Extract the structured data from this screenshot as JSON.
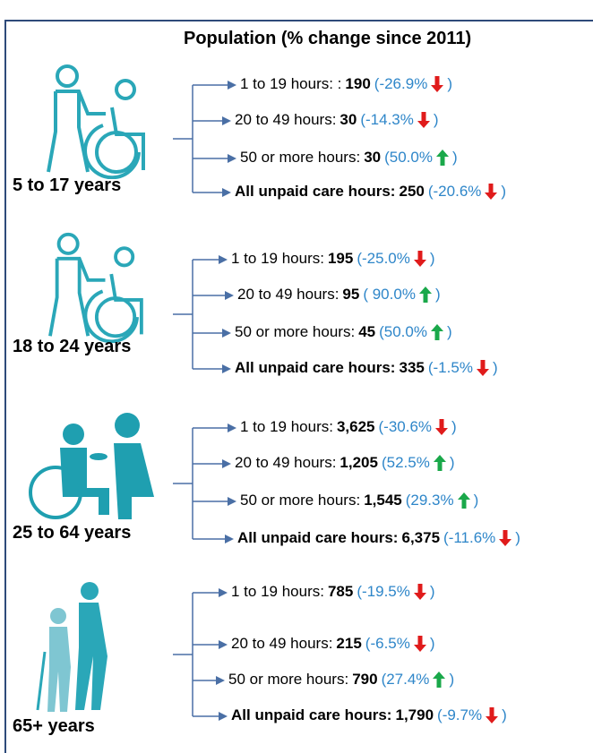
{
  "title": "Population (% change since 2011)",
  "paren_close": ")",
  "groups": [
    {
      "age": "5 to 17 years",
      "rows": [
        {
          "label": "1 to 19 hours: :",
          "value": "190",
          "change": "(-26.9%",
          "direction": "down"
        },
        {
          "label": "20 to 49 hours:",
          "value": "30",
          "change": "(-14.3%",
          "direction": "down"
        },
        {
          "label": "50 or more hours:",
          "value": "30",
          "change": "(50.0%",
          "direction": "up"
        },
        {
          "label": "All unpaid care hours:",
          "value": "250",
          "change": "(-20.6%",
          "direction": "down"
        }
      ]
    },
    {
      "age": "18 to 24 years",
      "rows": [
        {
          "label": "1 to 19 hours:",
          "value": "195",
          "change": "(-25.0%",
          "direction": "down"
        },
        {
          "label": "20 to 49 hours:",
          "value": "95",
          "change": "( 90.0%",
          "direction": "up"
        },
        {
          "label": "50 or more hours:",
          "value": "45",
          "change": "(50.0%",
          "direction": "up"
        },
        {
          "label": "All unpaid care hours:",
          "value": "335",
          "change": "(-1.5%",
          "direction": "down"
        }
      ]
    },
    {
      "age": "25 to 64 years",
      "rows": [
        {
          "label": "1 to 19 hours:",
          "value": "3,625",
          "change": "(-30.6%",
          "direction": "down"
        },
        {
          "label": "20 to 49 hours:",
          "value": "1,205",
          "change": "(52.5%",
          "direction": "up"
        },
        {
          "label": "50 or more hours:",
          "value": "1,545",
          "change": "(29.3%",
          "direction": "up"
        },
        {
          "label": "All unpaid care hours:",
          "value": "6,375",
          "change": "(-11.6%",
          "direction": "down"
        }
      ]
    },
    {
      "age": "65+ years",
      "rows": [
        {
          "label": "1 to 19 hours:",
          "value": "785",
          "change": "(-19.5%",
          "direction": "down"
        },
        {
          "label": "20 to 49 hours:",
          "value": "215",
          "change": "(-6.5%",
          "direction": "down"
        },
        {
          "label": "50 or more hours:",
          "value": "790",
          "change": "(27.4%",
          "direction": "up"
        },
        {
          "label": "All unpaid care hours:",
          "value": "1,790",
          "change": "(-9.7%",
          "direction": "down"
        }
      ]
    }
  ]
}
